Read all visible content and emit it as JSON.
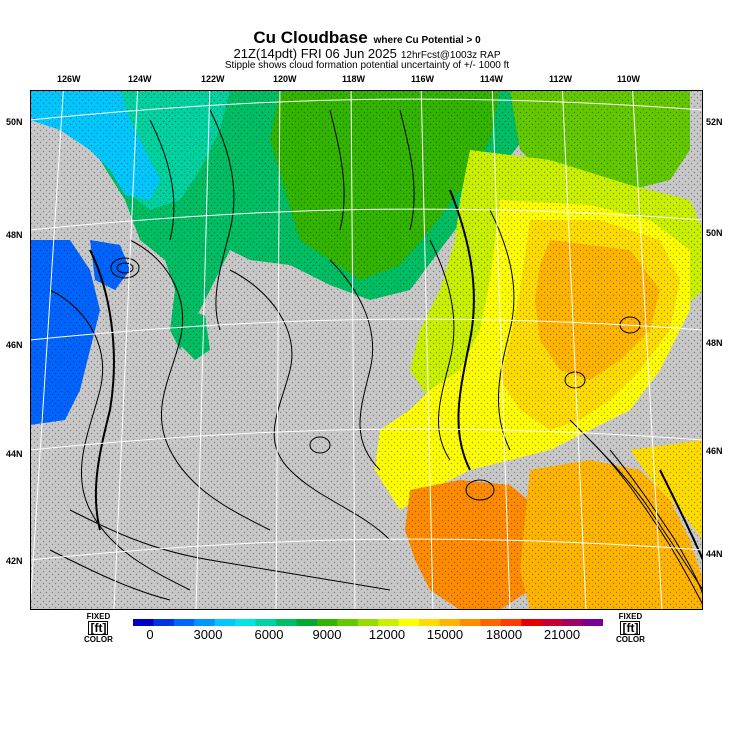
{
  "title": {
    "main": "Cu Cloudbase",
    "condition": "where Cu Potential > 0",
    "time": "21Z(14pdt) FRI 06 Jun 2025",
    "forecast": "12hrFcst@1003z RAP",
    "note": "Stipple shows cloud formation potential uncertainty of +/- 1000 ft"
  },
  "lon_labels": [
    "126W",
    "124W",
    "122W",
    "120W",
    "118W",
    "116W",
    "114W",
    "112W",
    "110W"
  ],
  "lat_labels_left": [
    "50N",
    "48N",
    "46N",
    "44N",
    "42N"
  ],
  "lat_labels_right": [
    "52N",
    "50N",
    "48N",
    "46N",
    "44N"
  ],
  "colorbar": {
    "unit_label_left": {
      "top": "FIXED",
      "mid": "[ft]",
      "bottom": "COLOR"
    },
    "unit_label_right": {
      "top": "FIXED",
      "mid": "[ft]",
      "bottom": "COLOR"
    },
    "tick_labels": [
      "0",
      "3000",
      "6000",
      "9000",
      "12000",
      "15000",
      "18000",
      "21000"
    ],
    "colors": [
      "#0000c8",
      "#0032e6",
      "#0064ff",
      "#0096ff",
      "#00c8ff",
      "#00e6e6",
      "#00d2a0",
      "#00be64",
      "#00aa32",
      "#32b400",
      "#64c800",
      "#96dc00",
      "#c8f000",
      "#ffff00",
      "#ffdc00",
      "#ffb400",
      "#ff8c00",
      "#ff6400",
      "#ff3c00",
      "#e60000",
      "#c80032",
      "#a00064",
      "#780096"
    ]
  },
  "colors": {
    "terrain_gray": "#c8c8c8",
    "contour": "#000000",
    "graticule": "#ffffff"
  }
}
